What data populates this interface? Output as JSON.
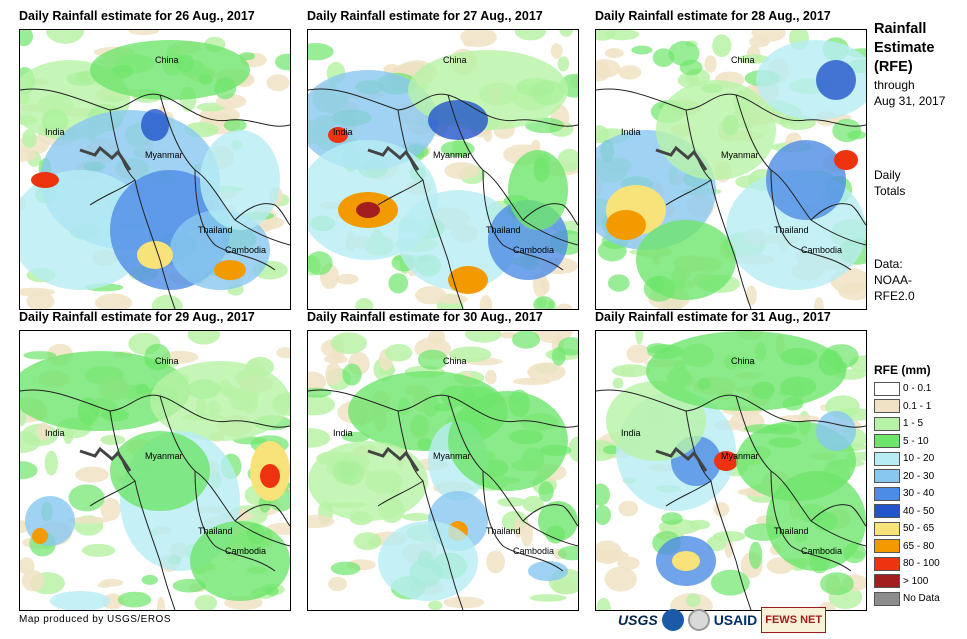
{
  "panels": [
    {
      "title": "Daily Rainfall estimate for 26 Aug., 2017",
      "labels": {
        "china": "China",
        "india": "India",
        "myanmar": "Myanmar",
        "thailand": "Thailand",
        "cambodia": "Cambodia"
      }
    },
    {
      "title": "Daily Rainfall estimate for 27 Aug., 2017",
      "labels": {
        "china": "China",
        "india": "India",
        "myanmar": "Myanmar",
        "thailand": "Thailand",
        "cambodia": "Cambodia"
      }
    },
    {
      "title": "Daily Rainfall estimate for 28 Aug., 2017",
      "labels": {
        "china": "China",
        "india": "India",
        "myanmar": "Myanmar",
        "thailand": "Thailand",
        "cambodia": "Cambodia"
      }
    },
    {
      "title": "Daily Rainfall estimate for 29 Aug., 2017",
      "labels": {
        "china": "China",
        "india": "India",
        "myanmar": "Myanmar",
        "thailand": "Thailand",
        "cambodia": "Cambodia"
      }
    },
    {
      "title": "Daily Rainfall estimate for 30 Aug., 2017",
      "labels": {
        "china": "China",
        "india": "India",
        "myanmar": "Myanmar",
        "thailand": "Thailand",
        "cambodia": "Cambodia"
      }
    },
    {
      "title": "Daily Rainfall estimate for 31 Aug., 2017",
      "labels": {
        "china": "China",
        "india": "India",
        "myanmar": "Myanmar",
        "thailand": "Thailand",
        "cambodia": "Cambodia"
      }
    }
  ],
  "side": {
    "title_line1": "Rainfall",
    "title_line2": "Estimate",
    "title_line3": "(RFE)",
    "through": "through",
    "date": "Aug 31, 2017",
    "daily": "Daily",
    "totals": "Totals",
    "data_label": "Data:",
    "source1": "NOAA-",
    "source2": "RFE2.0"
  },
  "legend": {
    "title": "RFE (mm)",
    "items": [
      {
        "label": "0 - 0.1",
        "color": "#ffffff"
      },
      {
        "label": "0.1 - 1",
        "color": "#f0e2c4"
      },
      {
        "label": "1 - 5",
        "color": "#b8f2a6"
      },
      {
        "label": "5 - 10",
        "color": "#6ee56b"
      },
      {
        "label": "10 - 20",
        "color": "#b7ecf4"
      },
      {
        "label": "20 - 30",
        "color": "#88c8f0"
      },
      {
        "label": "30 - 40",
        "color": "#4d8ce6"
      },
      {
        "label": "40 - 50",
        "color": "#2255cc"
      },
      {
        "label": "50 - 65",
        "color": "#f8e27a"
      },
      {
        "label": "65 - 80",
        "color": "#f29a00"
      },
      {
        "label": "80 - 100",
        "color": "#ee3311"
      },
      {
        "label": "> 100",
        "color": "#a31f1f"
      },
      {
        "label": "No Data",
        "color": "#8c8c8c"
      }
    ]
  },
  "footer": {
    "credit": "Map produced by USGS/EROS"
  },
  "logos": {
    "usgs": "USGS",
    "usaid": "USAID",
    "fews": "FEWS NET"
  }
}
